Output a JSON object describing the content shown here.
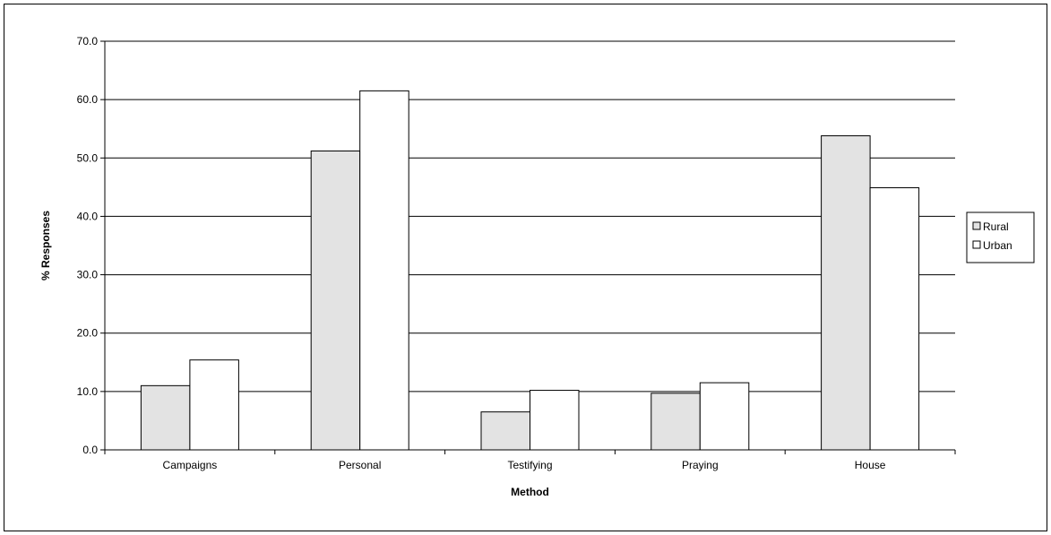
{
  "chart_data": {
    "type": "bar",
    "categories": [
      "Campaigns",
      "Personal",
      "Testifying",
      "Praying",
      "House"
    ],
    "series": [
      {
        "name": "Rural",
        "color": "#e3e3e3",
        "values": [
          11.0,
          51.2,
          6.5,
          9.7,
          53.8
        ]
      },
      {
        "name": "Urban",
        "color": "#ffffff",
        "values": [
          15.4,
          61.5,
          10.2,
          11.5,
          44.9
        ]
      }
    ],
    "xlabel": "Method",
    "ylabel": "% Responses",
    "ylim": [
      0,
      70
    ],
    "yticks": [
      "0.0",
      "10.0",
      "20.0",
      "30.0",
      "40.0",
      "50.0",
      "60.0",
      "70.0"
    ],
    "ytick_step": 10,
    "grid": true,
    "legend": "right"
  }
}
